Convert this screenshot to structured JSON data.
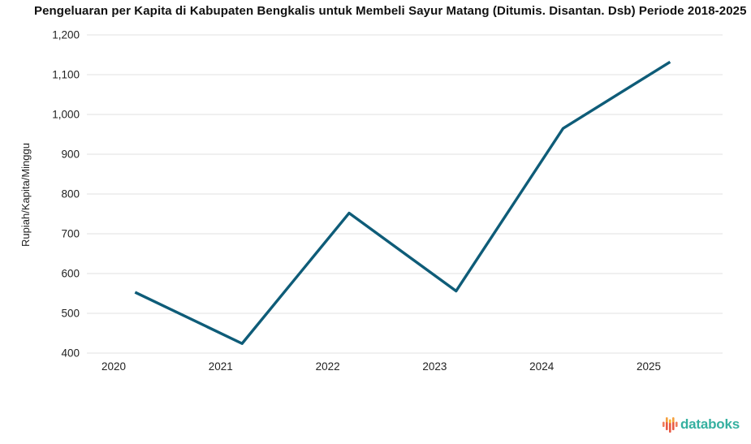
{
  "page": {
    "background": "#ffffff"
  },
  "header": {
    "title": "Pengeluaran per Kapita di Kabupaten Bengkalis untuk Membeli Sayur Matang (Ditumis. Disantan. Dsb) Periode 2018-2025"
  },
  "chart_data": {
    "type": "line",
    "title": "Pengeluaran per Kapita di Kabupaten Bengkalis untuk Membeli Sayur Matang (Ditumis. Disantan. Dsb) Periode 2018-2025",
    "categories": [
      "2020",
      "2021",
      "2022",
      "2023",
      "2024",
      "2025"
    ],
    "values": [
      553,
      424,
      752,
      556,
      965,
      1132
    ],
    "xlabel": "",
    "ylabel": "Rupiah/Kapita/Minggu",
    "ylim": [
      400,
      1200
    ],
    "ytick_step": 100,
    "ytick_labels": [
      "400",
      "500",
      "600",
      "700",
      "800",
      "900",
      "1,000",
      "1,100",
      "1,200"
    ],
    "grid": true,
    "legend": "none",
    "line_color": "#0e5c78",
    "gridline_color": "#e2e2e2",
    "tick_label_color": "#222222",
    "point_x_offset_fraction": 0.2
  },
  "branding": {
    "logo_text": "databoks",
    "logo_text_color": "#35b0a0",
    "logo_icon": "databoks-bars-icon",
    "logo_icon_colors": [
      "#f5a03d",
      "#e85a44",
      "#f7b733",
      "#ef7c5b"
    ]
  }
}
